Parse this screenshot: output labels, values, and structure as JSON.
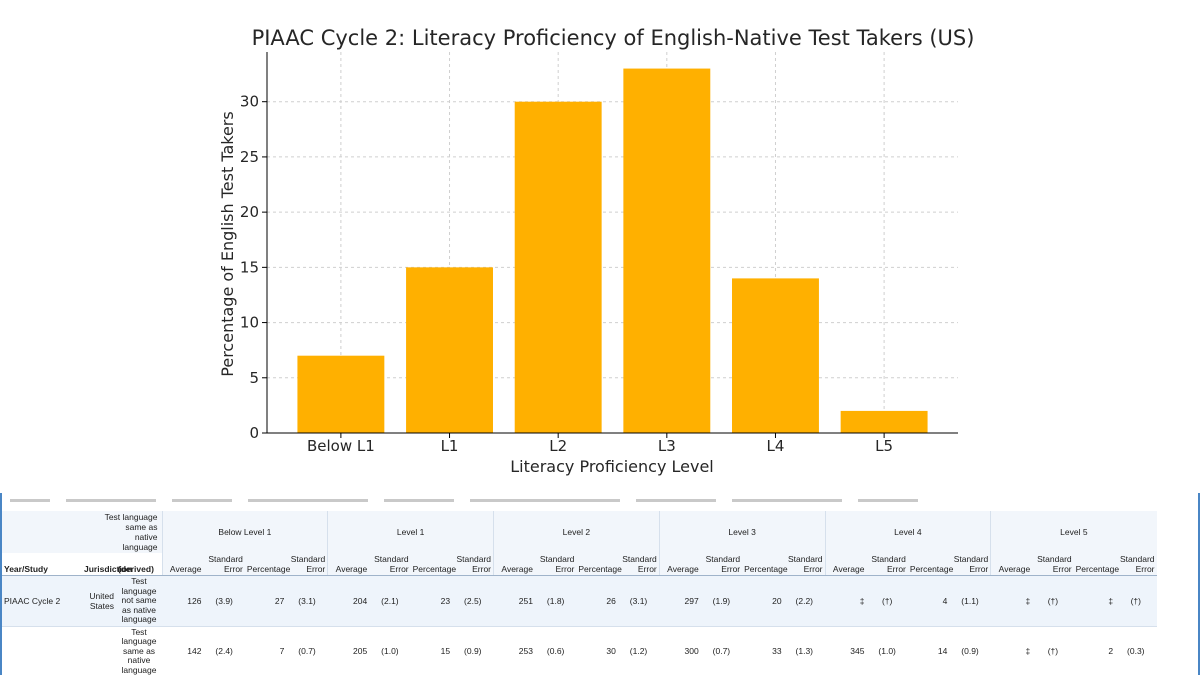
{
  "chart_data": {
    "type": "bar",
    "title": "PIAAC Cycle 2: Literacy Proficiency of English-Native Test Takers (US)",
    "xlabel": "Literacy Proficiency Level",
    "ylabel": "Percentage of English Test Takers",
    "categories": [
      "Below L1",
      "L1",
      "L2",
      "L3",
      "L4",
      "L5"
    ],
    "values": [
      7,
      15,
      30,
      33,
      14,
      2
    ],
    "ylim": [
      0,
      34.5
    ],
    "yticks": [
      0,
      5,
      10,
      15,
      20,
      25,
      30
    ],
    "bar_color": "#FFB000",
    "grid": true
  },
  "table": {
    "levels": [
      "Below Level 1",
      "Level 1",
      "Level 2",
      "Level 3",
      "Level 4",
      "Level 5"
    ],
    "corner_header": "Test language same as native language",
    "col_year": "Year/Study",
    "col_jurisdiction": "Jurisdiction",
    "col_derived": "(derived)",
    "sub_headers": [
      "Average",
      "Standard Error",
      "Percentage",
      "Standard Error"
    ],
    "rows": [
      {
        "year": "PIAAC Cycle 2",
        "jurisdiction": "United States",
        "language": "Test language not same as native language",
        "values": [
          "126",
          "(3.9)",
          "27",
          "(3.1)",
          "204",
          "(2.1)",
          "23",
          "(2.5)",
          "251",
          "(1.8)",
          "26",
          "(3.1)",
          "297",
          "(1.9)",
          "20",
          "(2.2)",
          "‡",
          "(†)",
          "4",
          "(1.1)",
          "‡",
          "(†)",
          "‡",
          "(†)"
        ]
      },
      {
        "year": "",
        "jurisdiction": "",
        "language": "Test language same as native language",
        "values": [
          "142",
          "(2.4)",
          "7",
          "(0.7)",
          "205",
          "(1.0)",
          "15",
          "(0.9)",
          "253",
          "(0.6)",
          "30",
          "(1.2)",
          "300",
          "(0.7)",
          "33",
          "(1.3)",
          "345",
          "(1.0)",
          "14",
          "(0.9)",
          "‡",
          "(†)",
          "2",
          "(0.3)"
        ]
      }
    ]
  }
}
